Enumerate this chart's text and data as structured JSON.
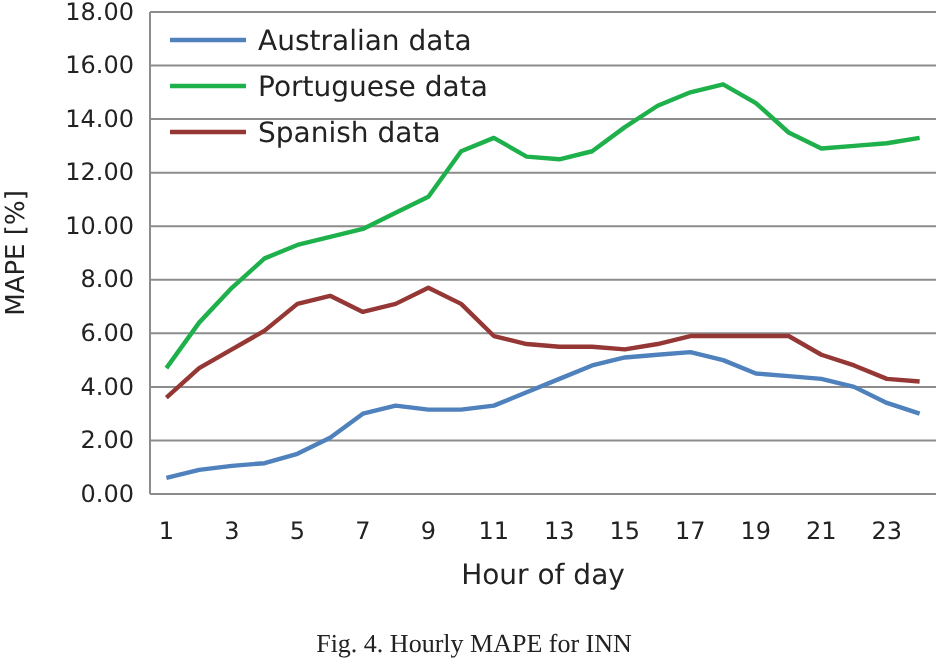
{
  "chart_data": {
    "type": "line",
    "title": "Fig. 4. Hourly MAPE for INN",
    "xlabel": "Hour of day",
    "ylabel": "MAPE [%]",
    "x": [
      1,
      2,
      3,
      4,
      5,
      6,
      7,
      8,
      9,
      10,
      11,
      12,
      13,
      14,
      15,
      16,
      17,
      18,
      19,
      20,
      21,
      22,
      23,
      24
    ],
    "xlim": [
      0.5,
      24.5
    ],
    "xticks": [
      1,
      3,
      5,
      7,
      9,
      11,
      13,
      15,
      17,
      19,
      21,
      23
    ],
    "series": [
      {
        "name": "Australian data",
        "color": "#4f81bd",
        "values": [
          0.6,
          0.9,
          1.05,
          1.15,
          1.5,
          2.1,
          3.0,
          3.3,
          3.15,
          3.15,
          3.3,
          3.8,
          4.3,
          4.8,
          5.1,
          5.2,
          5.3,
          5.0,
          4.5,
          4.4,
          4.3,
          4.0,
          3.4,
          3.0
        ]
      },
      {
        "name": "Portuguese data",
        "color": "#1eb04a",
        "values": [
          4.7,
          6.4,
          7.7,
          8.8,
          9.3,
          9.6,
          9.9,
          10.5,
          11.1,
          12.8,
          13.3,
          12.6,
          12.5,
          12.8,
          13.7,
          14.5,
          15.0,
          15.3,
          14.6,
          13.5,
          12.9,
          13.0,
          13.1,
          13.3
        ]
      },
      {
        "name": "Spanish data",
        "color": "#953735",
        "values": [
          3.6,
          4.7,
          5.4,
          6.1,
          7.1,
          7.4,
          6.8,
          7.1,
          7.7,
          7.1,
          5.9,
          5.6,
          5.5,
          5.5,
          5.4,
          5.6,
          5.9,
          5.9,
          5.9,
          5.9,
          5.2,
          4.8,
          4.3,
          4.2
        ]
      }
    ],
    "ylim": [
      0,
      18
    ],
    "yticks": [
      {
        "value": 0,
        "label": "0.00"
      },
      {
        "value": 2,
        "label": "2.00"
      },
      {
        "value": 4,
        "label": "4.00"
      },
      {
        "value": 6,
        "label": "6.00"
      },
      {
        "value": 8,
        "label": "8.00"
      },
      {
        "value": 10,
        "label": "10.00"
      },
      {
        "value": 12,
        "label": "12.00"
      },
      {
        "value": 14,
        "label": "14.00"
      },
      {
        "value": 16,
        "label": "16.00"
      },
      {
        "value": 18,
        "label": "18.00"
      }
    ],
    "grid": "y",
    "legend": "top left",
    "marker": "none",
    "line_style": "solid"
  }
}
